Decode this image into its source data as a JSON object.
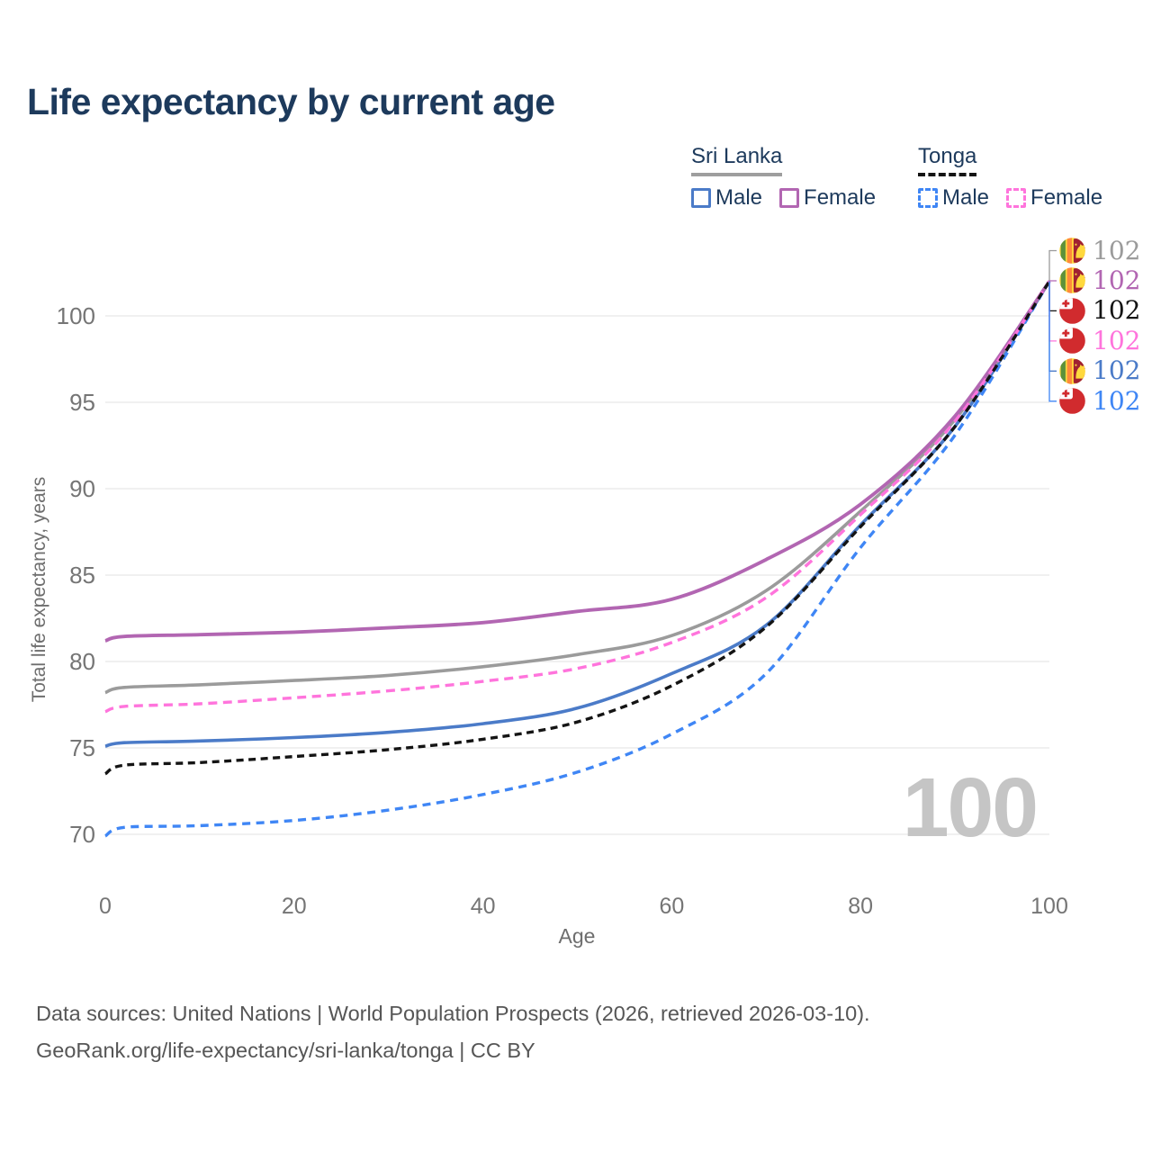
{
  "title": "Life expectancy by current age",
  "watermark": "100",
  "legend": {
    "groups": [
      {
        "label": "Sri Lanka",
        "underline_style": "solid",
        "underline_color": "#9e9e9e",
        "items": [
          {
            "label": "Male",
            "color": "#4b7bc8",
            "dash": false
          },
          {
            "label": "Female",
            "color": "#b266b2",
            "dash": false
          }
        ]
      },
      {
        "label": "Tonga",
        "underline_style": "dashed",
        "underline_color": "#141414",
        "items": [
          {
            "label": "Male",
            "color": "#3f86f5",
            "dash": true
          },
          {
            "label": "Female",
            "color": "#ff74dc",
            "dash": true
          }
        ]
      }
    ]
  },
  "y_axis": {
    "title": "Total life expectancy, years",
    "ticks": [
      70,
      75,
      80,
      85,
      90,
      95,
      100
    ]
  },
  "x_axis": {
    "title": "Age",
    "ticks": [
      0,
      20,
      40,
      60,
      80,
      100
    ]
  },
  "chart_data": {
    "type": "line",
    "title": "Life expectancy by current age",
    "xlabel": "Age",
    "ylabel": "Total life expectancy, years",
    "xlim": [
      0,
      100
    ],
    "ylim": [
      68,
      103.5
    ],
    "grid": "horizontal",
    "x": [
      0,
      2,
      10,
      20,
      30,
      40,
      50,
      60,
      70,
      80,
      90,
      100
    ],
    "series": [
      {
        "name": "Sri Lanka Male",
        "country": "Sri Lanka",
        "sex": "Male",
        "color": "#4b7bc8",
        "dash": "solid",
        "values": [
          75.1,
          75.3,
          75.4,
          75.6,
          75.9,
          76.4,
          77.3,
          79.3,
          82.1,
          87.9,
          93.6,
          102
        ]
      },
      {
        "name": "Sri Lanka Total",
        "country": "Sri Lanka",
        "sex": "Total",
        "color": "#9b9b9b",
        "dash": "solid",
        "values": [
          78.2,
          78.5,
          78.65,
          78.9,
          79.2,
          79.7,
          80.4,
          81.5,
          84.1,
          88.7,
          94.0,
          102
        ]
      },
      {
        "name": "Sri Lanka Female",
        "country": "Sri Lanka",
        "sex": "Female",
        "color": "#b266b2",
        "dash": "solid",
        "values": [
          81.2,
          81.45,
          81.55,
          81.7,
          81.95,
          82.25,
          82.9,
          83.6,
          85.9,
          89.1,
          94.2,
          102
        ]
      },
      {
        "name": "Tonga Male",
        "country": "Tonga",
        "sex": "Male",
        "color": "#3f86f5",
        "dash": "dashed",
        "values": [
          69.9,
          70.4,
          70.5,
          70.8,
          71.4,
          72.3,
          73.6,
          75.8,
          79.3,
          86.6,
          93.1,
          102
        ]
      },
      {
        "name": "Tonga Female",
        "country": "Tonga",
        "sex": "Female",
        "color": "#ff74dc",
        "dash": "dashed",
        "values": [
          77.1,
          77.4,
          77.55,
          77.9,
          78.3,
          78.85,
          79.6,
          81.1,
          83.7,
          88.5,
          93.9,
          102
        ]
      },
      {
        "name": "Tonga Total",
        "country": "Tonga",
        "sex": "Total",
        "color": "#141414",
        "dash": "dashed",
        "values": [
          73.5,
          74.0,
          74.15,
          74.5,
          74.9,
          75.5,
          76.5,
          78.6,
          82.0,
          87.8,
          93.6,
          102
        ]
      }
    ]
  },
  "end_labels": [
    {
      "flag": "sri-lanka-flag-icon",
      "value": "102",
      "color": "#9b9b9b"
    },
    {
      "flag": "sri-lanka-flag-icon",
      "value": "102",
      "color": "#b266b2"
    },
    {
      "flag": "tonga-flag-icon",
      "value": "102",
      "color": "#141414"
    },
    {
      "flag": "tonga-flag-icon",
      "value": "102",
      "color": "#ff74dc"
    },
    {
      "flag": "sri-lanka-flag-icon",
      "value": "102",
      "color": "#4b7bc8"
    },
    {
      "flag": "tonga-flag-icon",
      "value": "102",
      "color": "#3f86f5"
    }
  ],
  "footer": {
    "line1": "Data sources: United Nations | World Population Prospects (2026, retrieved 2026-03-10).",
    "line2": "GeoRank.org/life-expectancy/sri-lanka/tonga | CC BY"
  },
  "colors": {
    "title_navy": "#1d3a5c",
    "axis_gray": "#757575",
    "gridline": "#ebebeb",
    "watermark_gray": "#c5c5c5",
    "footer_gray": "#565656"
  }
}
